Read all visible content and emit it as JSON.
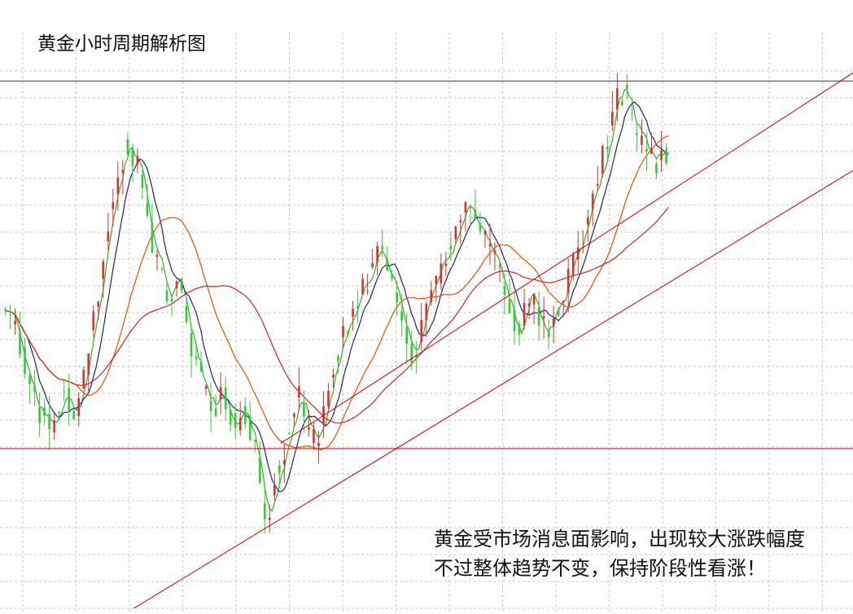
{
  "chart_data": {
    "type": "candlestick",
    "title": "黄金小时周期解析图",
    "annotation_lines": [
      "黄金受市场消息面影响，出现较大涨跌幅度",
      "不过整体趋势不变，保持阶段性看涨！"
    ],
    "colors": {
      "up": "#d9342b",
      "down": "#33cc33",
      "ma_short": "#33aa33",
      "ma_mid": "#1a237e",
      "ma_long1": "#e65100",
      "ma_long2": "#c62828",
      "levels": "#cc0000",
      "trendlines": "#cc0000",
      "grid": "#c8c8c8"
    },
    "grid": true,
    "ylim": [
      0,
      100
    ],
    "x": {
      "start": 0,
      "end": 135
    },
    "horizontal_levels": [
      {
        "name": "resistance",
        "value": 97
      },
      {
        "name": "support",
        "value": 28
      }
    ],
    "trendlines": [
      {
        "name": "upper-trend",
        "points": [
          [
            56,
            29
          ],
          [
            135,
            76
          ]
        ]
      },
      {
        "name": "lower-trend",
        "points": [
          [
            26,
            -2
          ],
          [
            135,
            59
          ]
        ]
      }
    ],
    "closes": [
      54,
      52,
      50,
      46,
      42,
      40,
      36,
      35,
      34,
      32,
      34,
      38,
      40,
      36,
      35,
      40,
      42,
      50,
      55,
      60,
      66,
      72,
      76,
      80,
      86,
      84,
      82,
      80,
      74,
      70,
      64,
      62,
      58,
      56,
      58,
      60,
      54,
      50,
      46,
      44,
      40,
      38,
      36,
      38,
      40,
      36,
      34,
      32,
      36,
      34,
      30,
      26,
      18,
      14,
      20,
      24,
      26,
      30,
      34,
      38,
      36,
      32,
      30,
      28,
      32,
      36,
      42,
      46,
      48,
      50,
      52,
      54,
      56,
      58,
      62,
      64,
      66,
      64,
      60,
      58,
      54,
      50,
      48,
      46,
      48,
      52,
      56,
      58,
      60,
      62,
      66,
      68,
      70,
      72,
      74,
      72,
      70,
      68,
      66,
      64,
      62,
      58,
      56,
      54,
      52,
      52,
      54,
      56,
      54,
      52,
      50,
      52,
      54,
      56,
      58,
      60,
      64,
      66,
      70,
      74,
      78,
      80,
      84,
      88,
      92,
      94,
      96,
      92,
      88,
      86,
      84,
      84,
      82,
      82,
      84,
      83
    ],
    "ma_values": {
      "short": "close-based moving average (fast)",
      "mid": "close-based moving average (medium)",
      "long1": "close-based moving average (slow)",
      "long2": "close-based moving average (slowest)"
    }
  }
}
